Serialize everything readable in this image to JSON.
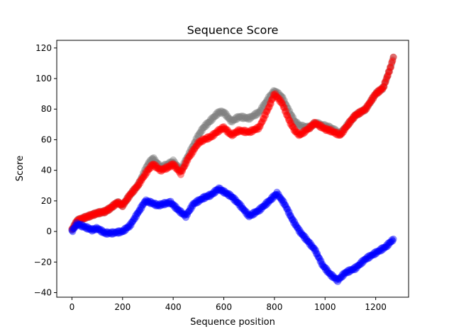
{
  "chart_data": {
    "type": "scatter",
    "title": "Sequence Score",
    "xlabel": "Sequence position",
    "ylabel": "Score",
    "xlim": [
      -60,
      1330
    ],
    "ylim": [
      -43,
      125
    ],
    "xticks": [
      0,
      200,
      400,
      600,
      800,
      1000,
      1200
    ],
    "yticks": [
      -40,
      -20,
      0,
      20,
      40,
      60,
      80,
      100,
      120
    ],
    "grid": false,
    "series": [
      {
        "color": "#808080",
        "x": [
          0,
          20,
          50,
          100,
          130,
          150,
          180,
          200,
          230,
          260,
          300,
          320,
          350,
          380,
          400,
          430,
          460,
          500,
          520,
          550,
          580,
          600,
          630,
          660,
          700,
          740,
          780,
          800,
          830,
          860,
          880,
          900,
          940,
          960,
          1000,
          1020,
          1060,
          1100,
          1120,
          1160,
          1200,
          1230,
          1260,
          1270
        ],
        "values": [
          1,
          7,
          9,
          12,
          13,
          15,
          19,
          17,
          24,
          30,
          44,
          48,
          42,
          44,
          46,
          40,
          50,
          63,
          68,
          73,
          78,
          78,
          72,
          75,
          74,
          78,
          88,
          92,
          88,
          78,
          72,
          69,
          68,
          71,
          69,
          68,
          64,
          72,
          76,
          80,
          90,
          94,
          108,
          114
        ]
      },
      {
        "color": "#ff0000",
        "x": [
          0,
          20,
          50,
          100,
          130,
          150,
          180,
          200,
          230,
          260,
          300,
          320,
          350,
          380,
          400,
          430,
          460,
          500,
          520,
          550,
          580,
          600,
          630,
          660,
          700,
          740,
          780,
          800,
          830,
          860,
          880,
          900,
          940,
          960,
          1000,
          1020,
          1060,
          1100,
          1120,
          1160,
          1200,
          1230,
          1260,
          1270
        ],
        "values": [
          1,
          7,
          9,
          12,
          13,
          15,
          19,
          17,
          24,
          30,
          40,
          44,
          40,
          42,
          44,
          38,
          48,
          58,
          60,
          62,
          66,
          68,
          63,
          66,
          65,
          68,
          82,
          90,
          84,
          72,
          66,
          63,
          68,
          71,
          67,
          66,
          63,
          72,
          76,
          80,
          90,
          94,
          108,
          114
        ]
      },
      {
        "color": "#0000ff",
        "x": [
          0,
          20,
          50,
          80,
          100,
          130,
          160,
          200,
          230,
          260,
          290,
          310,
          340,
          360,
          390,
          420,
          450,
          480,
          520,
          550,
          580,
          600,
          630,
          660,
          700,
          740,
          780,
          810,
          840,
          870,
          900,
          930,
          960,
          990,
          1020,
          1050,
          1080,
          1120,
          1160,
          1200,
          1240,
          1270
        ],
        "values": [
          0,
          5,
          3,
          1,
          2,
          -1,
          -1,
          0,
          4,
          12,
          20,
          19,
          17,
          18,
          19,
          14,
          10,
          18,
          22,
          24,
          28,
          26,
          23,
          18,
          10,
          14,
          20,
          25,
          18,
          8,
          0,
          -6,
          -12,
          -22,
          -28,
          -32,
          -27,
          -24,
          -18,
          -14,
          -10,
          -5
        ]
      }
    ]
  }
}
